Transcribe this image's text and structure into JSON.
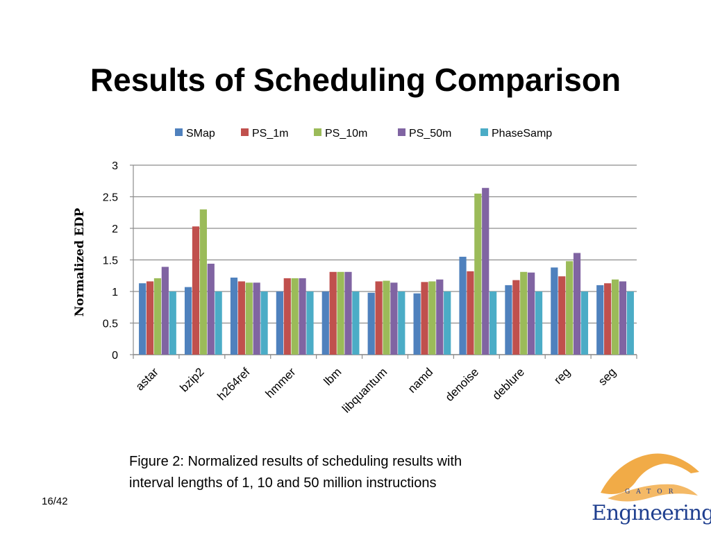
{
  "slide": {
    "title": "Results of Scheduling Comparison",
    "caption_line1": "Figure 2: Normalized results of scheduling results with",
    "caption_line2": "interval lengths of 1, 10 and 50 million instructions",
    "page_number": "16/42"
  },
  "logo": {
    "text": "Engineering",
    "subtext": "GATOR"
  },
  "chart_data": {
    "type": "bar",
    "ylabel": "Normalized  EDP",
    "xlabel": "",
    "ylim": [
      0,
      3
    ],
    "yticks": [
      "0",
      "0.5",
      "1",
      "1.5",
      "2",
      "2.5",
      "3"
    ],
    "grid": true,
    "legend_position": "top",
    "categories": [
      "astar",
      "bzip2",
      "h264ref",
      "hmmer",
      "lbm",
      "libquantum",
      "namd",
      "denoise",
      "deblure",
      "reg",
      "seg"
    ],
    "series": [
      {
        "name": "SMap",
        "color": "#4f81bd",
        "values": [
          1.13,
          1.07,
          1.22,
          1.0,
          1.0,
          0.98,
          0.97,
          1.55,
          1.1,
          1.38,
          1.1
        ]
      },
      {
        "name": "PS_1m",
        "color": "#c0504d",
        "values": [
          1.16,
          2.03,
          1.16,
          1.21,
          1.31,
          1.16,
          1.15,
          1.32,
          1.18,
          1.24,
          1.13
        ]
      },
      {
        "name": "PS_10m",
        "color": "#9bbb59",
        "values": [
          1.21,
          2.3,
          1.14,
          1.21,
          1.31,
          1.17,
          1.16,
          2.55,
          1.31,
          1.48,
          1.19
        ]
      },
      {
        "name": "PS_50m",
        "color": "#8064a2",
        "values": [
          1.39,
          1.44,
          1.14,
          1.21,
          1.31,
          1.14,
          1.19,
          2.64,
          1.3,
          1.61,
          1.16
        ]
      },
      {
        "name": "PhaseSamp",
        "color": "#4bacc6",
        "values": [
          1.0,
          1.0,
          1.0,
          1.0,
          1.0,
          1.0,
          1.0,
          1.0,
          1.0,
          1.0,
          1.0
        ]
      }
    ]
  }
}
